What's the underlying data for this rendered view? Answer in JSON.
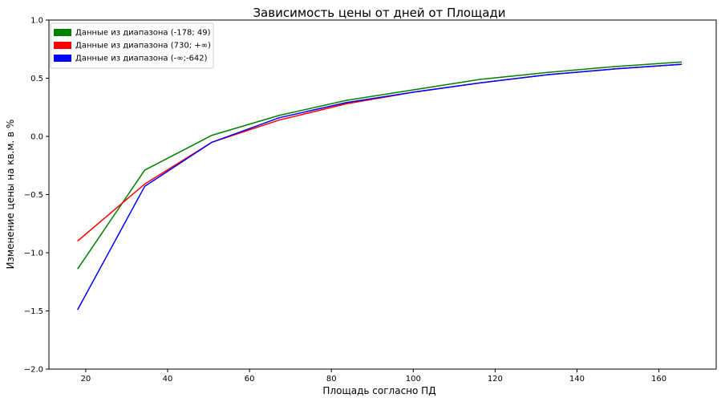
{
  "chart_data": {
    "type": "line",
    "title": "Зависимость цены от дней от Площади",
    "xlabel": "Площадь согласно ПД",
    "ylabel": "Изменение цены на кв.м. в %",
    "xlim": [
      11,
      174
    ],
    "ylim": [
      -2.0,
      1.0
    ],
    "xticks": [
      20,
      40,
      60,
      80,
      100,
      120,
      140,
      160
    ],
    "yticks": [
      -2.0,
      -1.5,
      -1.0,
      -0.5,
      0.0,
      0.5,
      1.0
    ],
    "xtick_labels": [
      "20",
      "40",
      "60",
      "80",
      "100",
      "120",
      "140",
      "160"
    ],
    "ytick_labels": [
      "−2.0",
      "−1.5",
      "−1.0",
      "−0.5",
      "0.0",
      "0.5",
      "1.0"
    ],
    "grid": false,
    "legend_position": "top-left",
    "x": [
      18,
      34.4,
      50.8,
      67.2,
      83.6,
      100,
      116.4,
      132.8,
      149.2,
      165.6
    ],
    "series": [
      {
        "name": "Данные из диапазона (-178; 49)",
        "color": "#008000",
        "values": [
          -1.14,
          -0.29,
          0.01,
          0.18,
          0.31,
          0.4,
          0.49,
          0.55,
          0.6,
          0.64
        ]
      },
      {
        "name": "Данные из диапазона (730; +∞)",
        "color": "#ff0000",
        "values": [
          -0.9,
          -0.41,
          -0.05,
          0.14,
          0.28,
          0.38,
          0.46,
          0.53,
          0.58,
          0.62
        ]
      },
      {
        "name": "Данные из диапазона (-∞;-642)",
        "color": "#0000ff",
        "values": [
          -1.49,
          -0.43,
          -0.05,
          0.16,
          0.29,
          0.38,
          0.46,
          0.53,
          0.58,
          0.62
        ]
      }
    ]
  }
}
